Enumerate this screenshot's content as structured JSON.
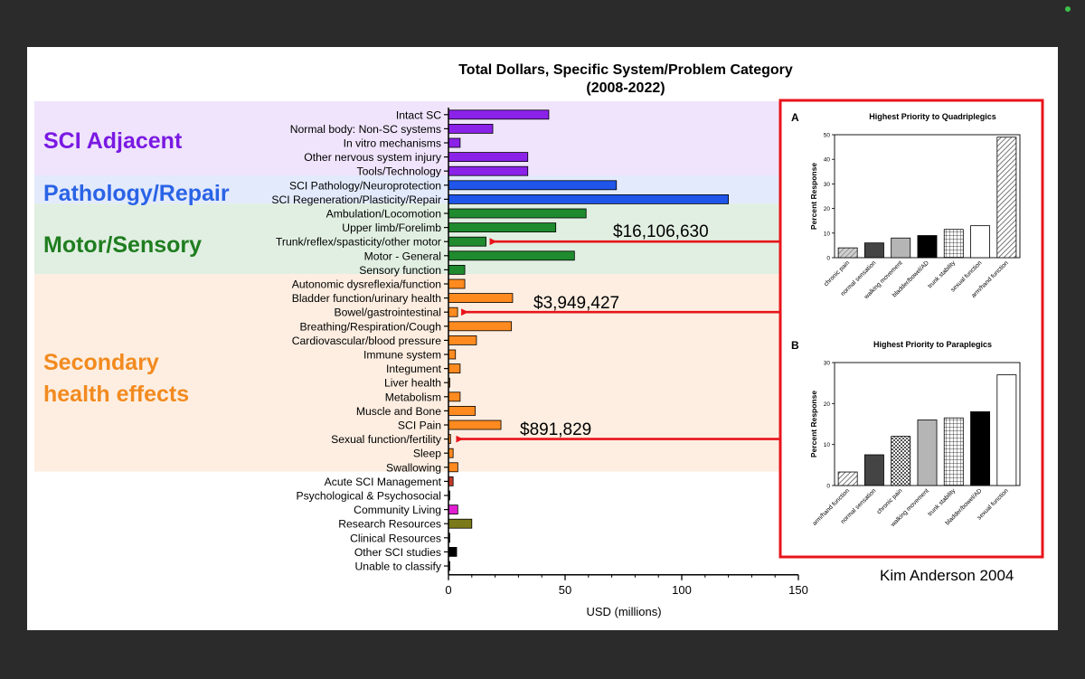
{
  "main_chart": {
    "title_line1": "Total Dollars, Specific System/Problem Category",
    "title_line2": "(2008-2022)",
    "xlabel": "USD (millions)",
    "xticks": [
      "0",
      "50",
      "100",
      "150"
    ]
  },
  "bands": [
    {
      "label": "SCI Adjacent",
      "color": "#7a19e3",
      "bg": "#efe4fb"
    },
    {
      "label": "Pathology/Repair",
      "color": "#2a63e6",
      "bg": "#e2eafb"
    },
    {
      "label": "Motor/Sensory",
      "color": "#1f7d1f",
      "bg": "#e1efe2"
    },
    {
      "label": "Secondary",
      "label2": "health effects",
      "color": "#f28a1f",
      "bg": "#fdeee1"
    }
  ],
  "annotations": [
    {
      "text": "$16,106,630"
    },
    {
      "text": "$3,949,427"
    },
    {
      "text": "$891,829"
    }
  ],
  "citation": "Kim Anderson 2004",
  "chart_data": [
    {
      "type": "bar",
      "orientation": "horizontal",
      "title": "Total Dollars, Specific System/Problem Category (2008-2022)",
      "xlabel": "USD (millions)",
      "xlim": [
        0,
        150
      ],
      "categories": [
        "Intact SC",
        "Normal body: Non-SC systems",
        "In vitro mechanisms",
        "Other nervous system injury",
        "Tools/Technology",
        "SCI Pathology/Neuroprotection",
        "SCI Regeneration/Plasticity/Repair",
        "Ambulation/Locomotion",
        "Upper limb/Forelimb",
        "Trunk/reflex/spasticity/other motor",
        "Motor - General",
        "Sensory function",
        "Autonomic dysreflexia/function",
        "Bladder function/urinary health",
        "Bowel/gastrointestinal",
        "Breathing/Respiration/Cough",
        "Cardiovascular/blood pressure",
        "Immune system",
        "Integument",
        "Liver health",
        "Metabolism",
        "Muscle and Bone",
        "SCI Pain",
        "Sexual function/fertility",
        "Sleep",
        "Swallowing",
        "Acute SCI Management",
        "Psychological & Psychosocial",
        "Community Living",
        "Research Resources",
        "Clinical Resources",
        "Other SCI studies",
        "Unable to classify"
      ],
      "values": [
        43,
        19,
        5,
        34,
        34,
        72,
        120,
        59,
        46,
        16.1,
        54,
        7,
        7,
        27.5,
        3.9,
        27,
        12,
        3,
        5,
        0.5,
        5,
        11.5,
        22.5,
        0.9,
        2,
        4,
        2,
        0.3,
        4,
        10,
        0.5,
        3.5,
        0.3
      ],
      "colors": [
        "#8b22e8",
        "#8b22e8",
        "#8b22e8",
        "#8b22e8",
        "#8b22e8",
        "#1f55e8",
        "#1f55e8",
        "#1f8a2e",
        "#1f8a2e",
        "#1f8a2e",
        "#1f8a2e",
        "#1f8a2e",
        "#ff8a1f",
        "#ff8a1f",
        "#ff8a1f",
        "#ff8a1f",
        "#ff8a1f",
        "#ff8a1f",
        "#ff8a1f",
        "#ff8a1f",
        "#ff8a1f",
        "#ff8a1f",
        "#ff8a1f",
        "#ff8a1f",
        "#ff8a1f",
        "#ff8a1f",
        "#c0392b",
        "#333333",
        "#e21fd0",
        "#7a7a1a",
        "#333333",
        "#000000",
        "#333333"
      ]
    },
    {
      "type": "bar",
      "panel": "A",
      "title": "Highest Priority to Quadriplegics",
      "ylabel": "Percent Response",
      "ylim": [
        0,
        50
      ],
      "yticks": [
        "0",
        "10",
        "20",
        "30",
        "40",
        "50"
      ],
      "categories": [
        "chronic pain",
        "normal sensation",
        "walking movement",
        "bladder/bowel/AD",
        "trunk stability",
        "sexual function",
        "arm/hand function"
      ],
      "values": [
        4,
        6,
        8,
        9,
        11.5,
        13,
        49
      ],
      "fills": [
        "hatchlight",
        "#444444",
        "#b5b5b5",
        "#000000",
        "grid",
        "#ffffff",
        "hatch"
      ]
    },
    {
      "type": "bar",
      "panel": "B",
      "title": "Highest Priority to Paraplegics",
      "ylabel": "Percent Response",
      "ylim": [
        0,
        30
      ],
      "yticks": [
        "0",
        "10",
        "20",
        "30"
      ],
      "categories": [
        "arm/hand function",
        "normal sensation",
        "chronic pain",
        "walking movement",
        "trunk stability",
        "bladder/bowel/AD",
        "sexual function"
      ],
      "values": [
        3.3,
        7.5,
        12,
        16,
        16.5,
        18,
        27
      ],
      "fills": [
        "hatch",
        "#444444",
        "checker",
        "#b5b5b5",
        "grid",
        "#000000",
        "#ffffff"
      ]
    }
  ]
}
